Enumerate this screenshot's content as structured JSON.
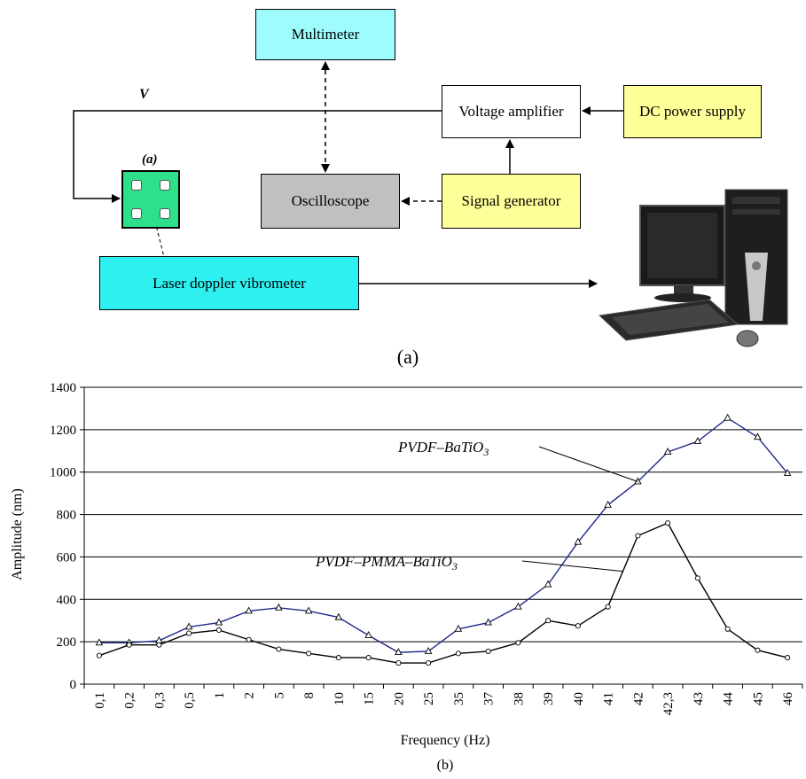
{
  "diagram": {
    "multimeter": "Multimeter",
    "voltage_amplifier": "Voltage amplifier",
    "dc_power_supply": "DC power supply",
    "oscilloscope": "Oscilloscope",
    "signal_generator": "Signal generator",
    "laser_doppler": "Laser doppler vibrometer",
    "voltage_label": "V",
    "sample_label": "(a)",
    "caption": "(a)",
    "colors": {
      "multimeter": "#9ffcfc",
      "amplifier": "#ffffff",
      "dc_power_supply": "#ffff9a",
      "oscilloscope": "#c0c0c0",
      "signal_generator": "#ffff9a",
      "laser_doppler": "#2ff0f0",
      "sample": "#2ee08a"
    },
    "icons": [
      "computer-icon"
    ]
  },
  "chart_data": {
    "type": "line",
    "categories": [
      "0,1",
      "0,2",
      "0,3",
      "0,5",
      "1",
      "2",
      "5",
      "8",
      "10",
      "15",
      "20",
      "25",
      "35",
      "37",
      "38",
      "39",
      "40",
      "41",
      "42",
      "42,3",
      "43",
      "44",
      "45",
      "46"
    ],
    "series": [
      {
        "name": "PVDF–BaTiO3",
        "marker": "triangle",
        "color": "#1f2a8a",
        "values": [
          195,
          195,
          205,
          270,
          290,
          345,
          360,
          345,
          315,
          230,
          150,
          155,
          260,
          290,
          365,
          470,
          670,
          845,
          955,
          1095,
          1145,
          1255,
          1165,
          995
        ]
      },
      {
        "name": "PVDF–PMMA–BaTiO3",
        "marker": "circle",
        "color": "#000000",
        "values": [
          135,
          185,
          185,
          240,
          255,
          210,
          165,
          145,
          125,
          125,
          100,
          100,
          145,
          155,
          195,
          300,
          275,
          365,
          700,
          760,
          500,
          260,
          160,
          125
        ]
      }
    ],
    "ylabel": "Amplitude (nm)",
    "xlabel": "Frequency (Hz)",
    "ylim": [
      0,
      1400
    ],
    "yticks": [
      0,
      200,
      400,
      600,
      800,
      1000,
      1200,
      1400
    ],
    "grid": "horizontal",
    "annotations": [
      {
        "text": "PVDF–BaTiO",
        "sub": "3",
        "series": 0
      },
      {
        "text": "PVDF–PMMA–BaTiO",
        "sub": "3",
        "series": 1
      }
    ],
    "caption": "(b)"
  }
}
